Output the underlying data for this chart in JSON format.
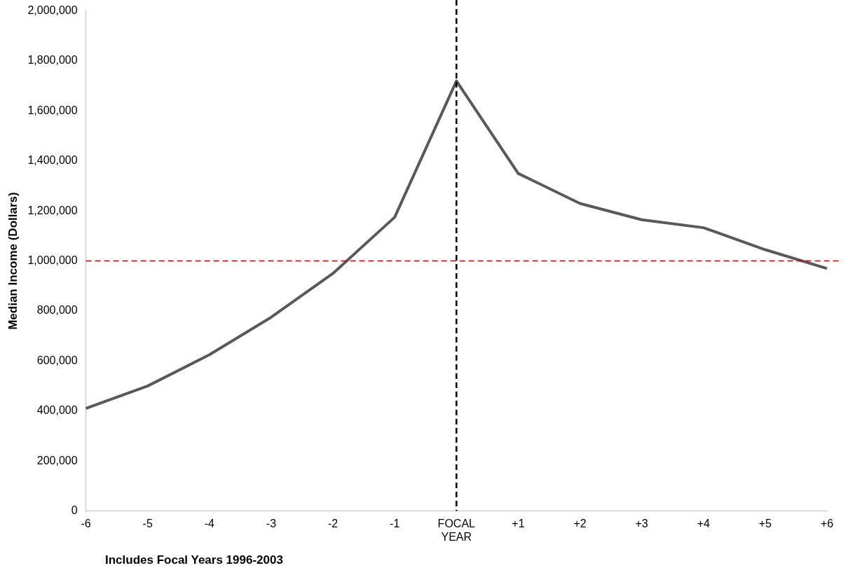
{
  "chart_data": {
    "type": "line",
    "ylabel": "Median Income (Dollars)",
    "categories": [
      "-6",
      "-5",
      "-4",
      "-3",
      "-2",
      "-1",
      "FOCAL YEAR",
      "+1",
      "+2",
      "+3",
      "+4",
      "+5",
      "+6"
    ],
    "series": [
      {
        "color": "#595959",
        "values": [
          410000,
          500000,
          625000,
          775000,
          950000,
          1175000,
          1720000,
          1350000,
          1230000,
          1165000,
          1133000,
          1045000,
          970000
        ]
      }
    ],
    "ylim": [
      0,
      2000000
    ],
    "yticks": [
      {
        "value": 0,
        "label": "0"
      },
      {
        "value": 200000,
        "label": "200,000"
      },
      {
        "value": 400000,
        "label": "400,000"
      },
      {
        "value": 600000,
        "label": "600,000"
      },
      {
        "value": 800000,
        "label": "800,000"
      },
      {
        "value": 1000000,
        "label": "1,000,000"
      },
      {
        "value": 1200000,
        "label": "1,200,000"
      },
      {
        "value": 1400000,
        "label": "1,400,000"
      },
      {
        "value": 1600000,
        "label": "1,600,000"
      },
      {
        "value": 1800000,
        "label": "1,800,000"
      },
      {
        "value": 2000000,
        "label": "2,000,000"
      }
    ],
    "ref_lines": [
      {
        "axis": "y",
        "value": 1000000,
        "color": "#c00000",
        "line_style": "dashed"
      },
      {
        "axis": "x",
        "value": "FOCAL YEAR",
        "color": "#000000",
        "line_style": "dashed"
      }
    ],
    "annotations": [
      "Includes Focal Years 1996-2003"
    ],
    "grid": false,
    "legend": false,
    "marker": "none",
    "line_style": "solid"
  }
}
